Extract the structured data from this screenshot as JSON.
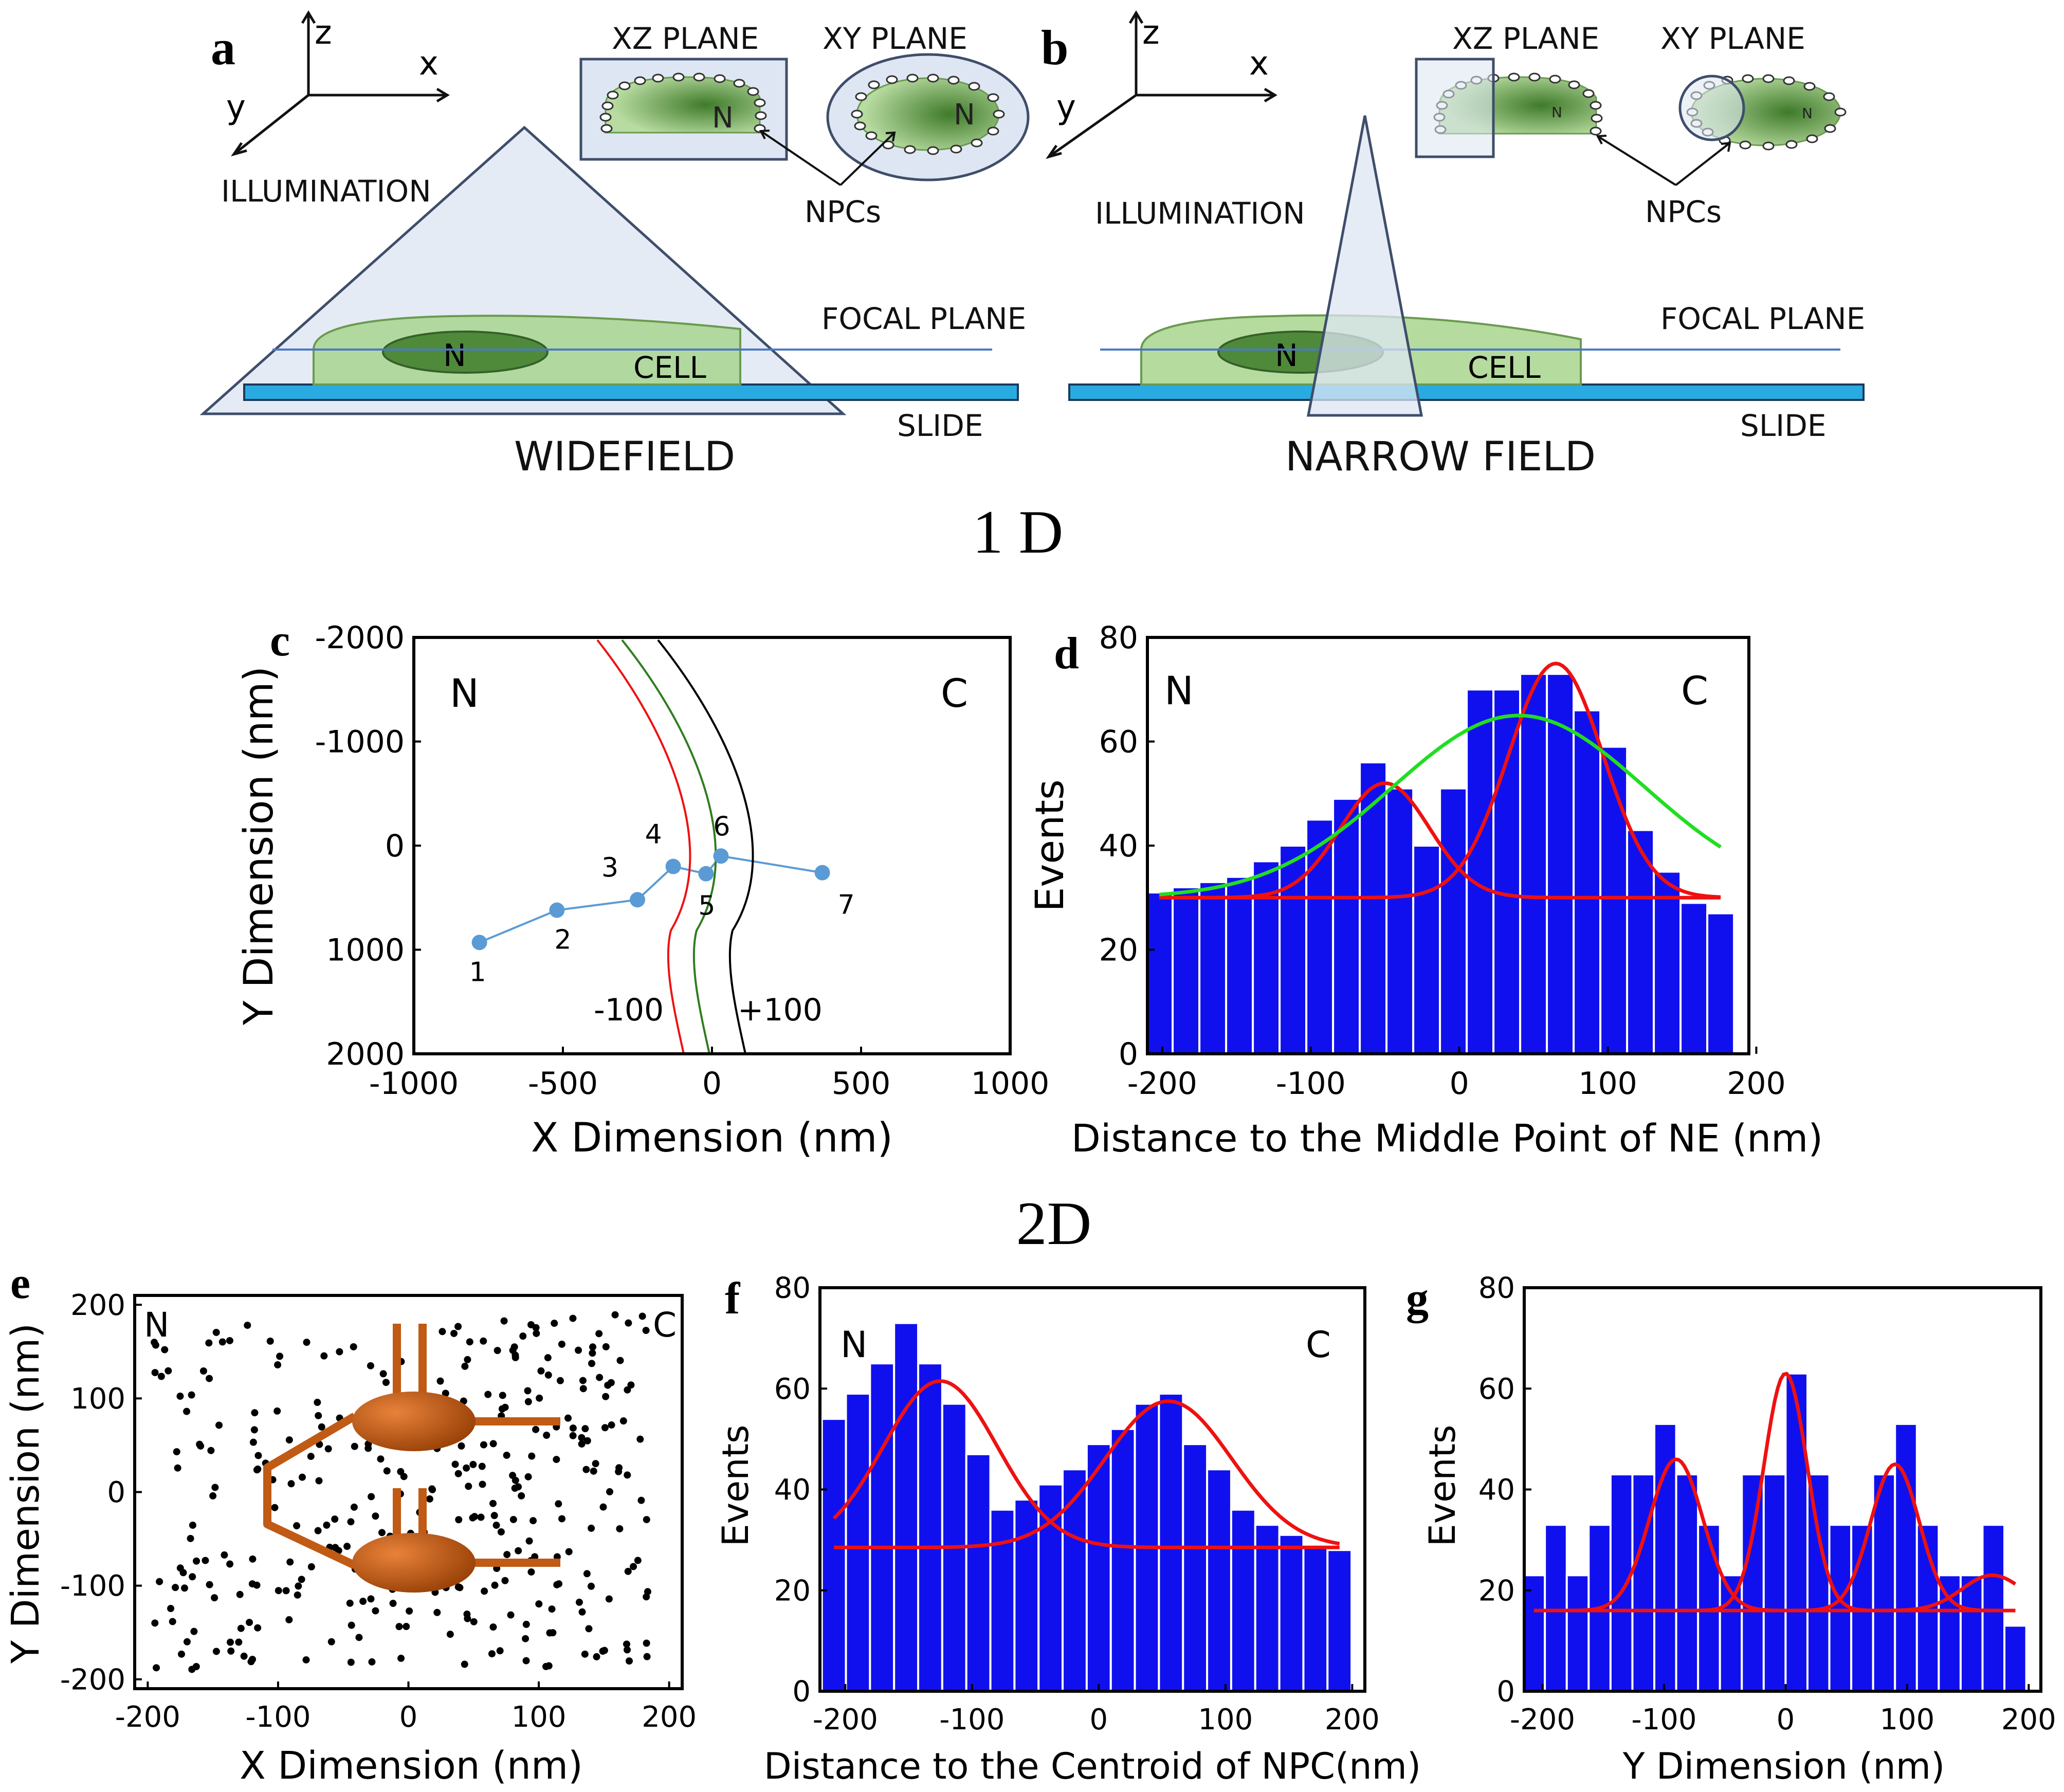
{
  "colors": {
    "bar": "#1010ee",
    "fit_red": "#ee1111",
    "fit_green": "#22dd22",
    "illum": "#dde6f2",
    "illum_edge": "#3e4e6a",
    "slide": "#29abe2",
    "cell": "#a8d58e",
    "nucleus": "#4e8a3a",
    "track": "#5b9bd5",
    "npc_orange": "#c05a14"
  },
  "top": {
    "section_1d": "1 D",
    "section_2d": "2D",
    "panel_a": {
      "letter": "a",
      "axes": {
        "z": "z",
        "x": "x",
        "y": "y"
      },
      "illumination": "ILLUMINATION",
      "xz_plane": "XZ PLANE",
      "xy_plane": "XY PLANE",
      "n_label": "N",
      "npcs": "NPCs",
      "focal_plane": "FOCAL PLANE",
      "cell": "CELL",
      "nucleus": "N",
      "slide": "SLIDE",
      "mode": "WIDEFIELD"
    },
    "panel_b": {
      "letter": "b",
      "axes": {
        "z": "z",
        "x": "x",
        "y": "y"
      },
      "illumination": "ILLUMINATION",
      "xz_plane": "XZ PLANE",
      "xy_plane": "XY PLANE",
      "n_label": "N",
      "npcs": "NPCs",
      "focal_plane": "FOCAL PLANE",
      "cell": "CELL",
      "nucleus": "N",
      "slide": "SLIDE",
      "mode": "NARROW FIELD"
    }
  },
  "chart_data": [
    {
      "panel": "c",
      "type": "line",
      "xlabel": "X Dimension (nm)",
      "ylabel": "Y Dimension (nm)",
      "xlim": [
        -1000,
        1000
      ],
      "ylim": [
        -2000,
        2000
      ],
      "y_inverted": true,
      "xticks": [
        -1000,
        -500,
        0,
        500,
        1000
      ],
      "yticks": [
        -2000,
        -1000,
        0,
        1000,
        2000
      ],
      "corner_left": "N",
      "corner_right": "C",
      "envelope_labels": {
        "minus": "-100",
        "plus": "+100"
      },
      "track": [
        {
          "label": "1",
          "x": -780,
          "y": 930
        },
        {
          "label": "2",
          "x": -520,
          "y": 620
        },
        {
          "label": "3",
          "x": -250,
          "y": 520
        },
        {
          "label": "4",
          "x": -130,
          "y": 200
        },
        {
          "label": "5",
          "x": -20,
          "y": 270
        },
        {
          "label": "6",
          "x": 30,
          "y": 100
        },
        {
          "label": "7",
          "x": 370,
          "y": 260
        }
      ]
    },
    {
      "panel": "d",
      "type": "bar",
      "xlabel": "Distance to the Middle Point of NE (nm)",
      "ylabel": "Events",
      "xlim": [
        -210,
        195
      ],
      "ylim": [
        0,
        80
      ],
      "xticks": [
        -200,
        -100,
        0,
        100,
        200
      ],
      "yticks": [
        0,
        20,
        40,
        60,
        80
      ],
      "corner_left": "N",
      "corner_right": "C",
      "bin_width": 18,
      "bin_centers": [
        -202,
        -184,
        -166,
        -148,
        -130,
        -112,
        -94,
        -76,
        -58,
        -40,
        -22,
        -4,
        14,
        32,
        50,
        68,
        86,
        104,
        122,
        140,
        158,
        176
      ],
      "values": [
        31,
        32,
        33,
        34,
        37,
        40,
        45,
        49,
        56,
        51,
        40,
        51,
        70,
        70,
        73,
        73,
        66,
        59,
        43,
        35,
        29,
        27
      ],
      "fits": [
        {
          "name": "two-gaussian",
          "color": "red",
          "baseline": 30,
          "components": [
            {
              "amp": 22,
              "mu": -50,
              "sigma": 30
            },
            {
              "amp": 45,
              "mu": 65,
              "sigma": 32
            }
          ]
        },
        {
          "name": "single-gaussian",
          "color": "green",
          "baseline": 30,
          "components": [
            {
              "amp": 35,
              "mu": 40,
              "sigma": 85
            }
          ]
        }
      ]
    },
    {
      "panel": "e",
      "type": "scatter",
      "xlabel": "X Dimension (nm)",
      "ylabel": "Y Dimension (nm)",
      "xlim": [
        -210,
        210
      ],
      "ylim": [
        -210,
        210
      ],
      "xticks": [
        -200,
        -100,
        0,
        100,
        200
      ],
      "yticks": [
        -200,
        -100,
        0,
        100,
        200
      ],
      "corner_left": "N",
      "corner_right": "C",
      "n_points": 330
    },
    {
      "panel": "f",
      "type": "bar",
      "xlabel": "Distance to the Centroid of NPC(nm)",
      "ylabel": "Events",
      "xlim": [
        -220,
        210
      ],
      "ylim": [
        0,
        80
      ],
      "xticks": [
        -200,
        -100,
        0,
        100,
        200
      ],
      "yticks": [
        0,
        20,
        40,
        60,
        80
      ],
      "corner_left": "N",
      "corner_right": "C",
      "bin_width": 19,
      "bin_centers": [
        -209,
        -190,
        -171,
        -152,
        -133,
        -114,
        -95,
        -76,
        -57,
        -38,
        -19,
        0,
        19,
        38,
        57,
        76,
        95,
        114,
        133,
        152,
        171,
        190
      ],
      "values": [
        54,
        59,
        65,
        73,
        65,
        57,
        47,
        36,
        38,
        41,
        44,
        49,
        52,
        57,
        59,
        49,
        44,
        36,
        33,
        31,
        29,
        28
      ],
      "fits": [
        {
          "name": "two-gaussian",
          "color": "red",
          "baseline": 28.5,
          "components": [
            {
              "amp": 33,
              "mu": -125,
              "sigma": 45
            },
            {
              "amp": 29,
              "mu": 55,
              "sigma": 50
            }
          ]
        }
      ]
    },
    {
      "panel": "g",
      "type": "bar",
      "xlabel": "Y Dimension (nm)",
      "ylabel": "Events",
      "xlim": [
        -215,
        210
      ],
      "ylim": [
        0,
        80
      ],
      "xticks": [
        -200,
        -100,
        0,
        100,
        200
      ],
      "yticks": [
        0,
        20,
        40,
        60,
        80
      ],
      "bin_width": 18,
      "bin_centers": [
        -207,
        -189,
        -171,
        -153,
        -135,
        -117,
        -99,
        -81,
        -63,
        -45,
        -27,
        -9,
        9,
        27,
        45,
        63,
        81,
        99,
        117,
        135,
        153,
        171,
        189
      ],
      "values": [
        23,
        33,
        23,
        33,
        43,
        43,
        53,
        43,
        33,
        23,
        43,
        43,
        63,
        43,
        33,
        33,
        43,
        53,
        33,
        23,
        23,
        33,
        13
      ],
      "fits": [
        {
          "name": "four-gaussian",
          "color": "red",
          "baseline": 16,
          "components": [
            {
              "amp": 30,
              "mu": -90,
              "sigma": 22
            },
            {
              "amp": 47,
              "mu": 0,
              "sigma": 18
            },
            {
              "amp": 29,
              "mu": 90,
              "sigma": 20
            },
            {
              "amp": 7,
              "mu": 170,
              "sigma": 25
            }
          ]
        }
      ]
    }
  ]
}
